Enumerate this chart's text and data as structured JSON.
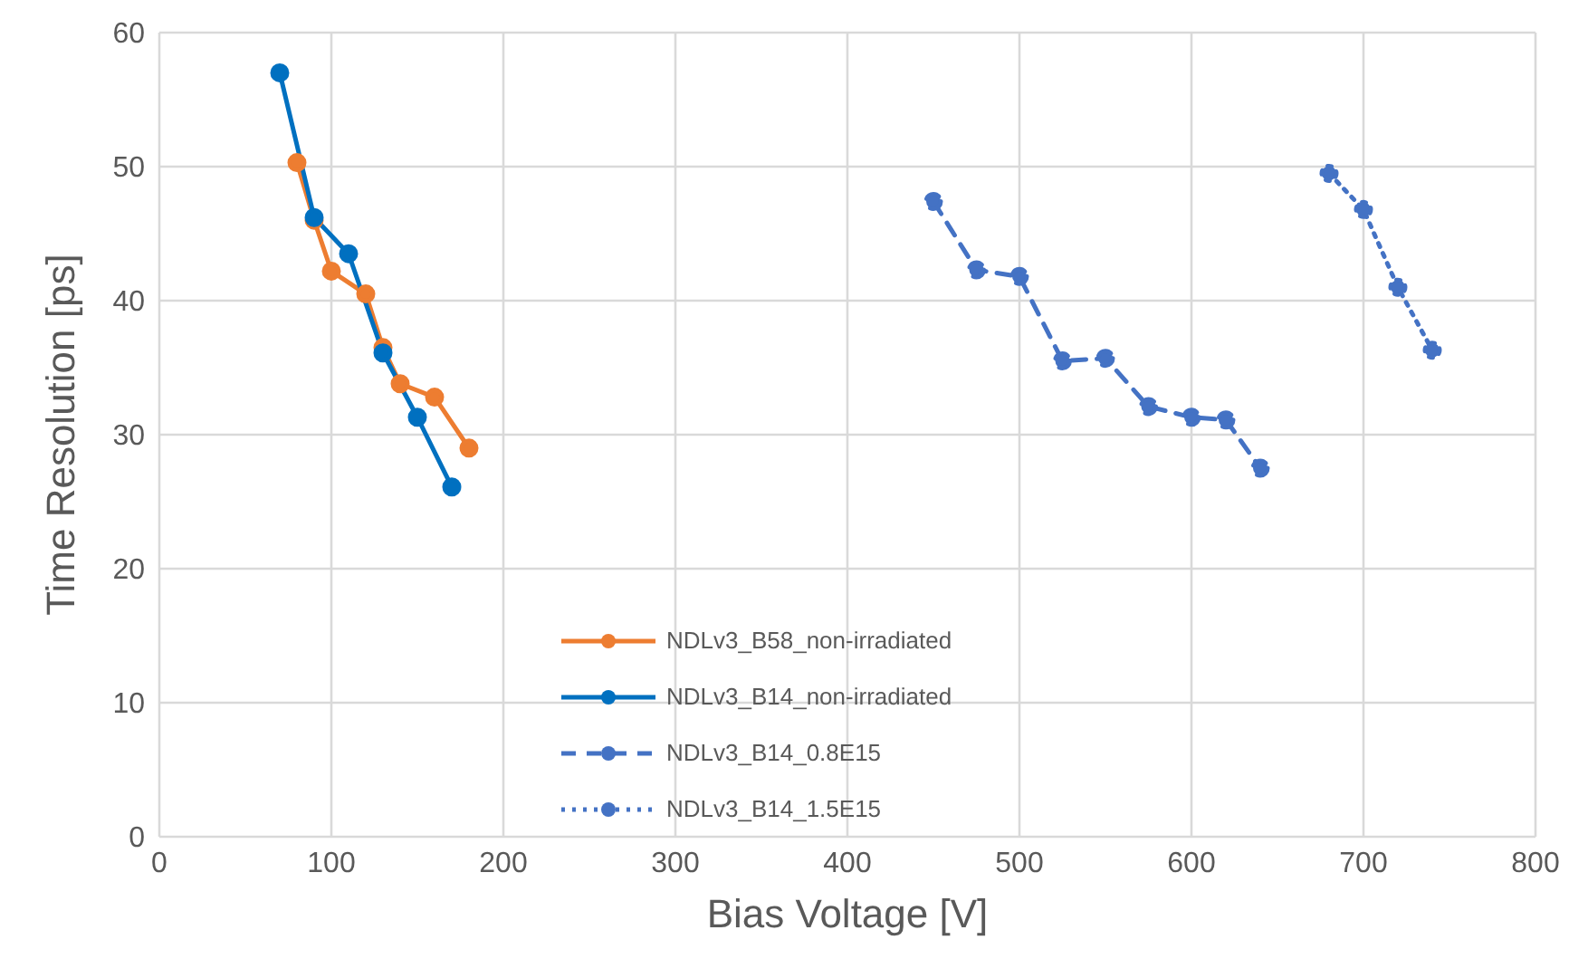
{
  "chart_data": {
    "type": "line",
    "xlabel": "Bias Voltage [V]",
    "ylabel": "Time Resolution [ps]",
    "xlim": [
      0,
      800
    ],
    "xticks": [
      0,
      100,
      200,
      300,
      400,
      500,
      600,
      700,
      800
    ],
    "ylim": [
      0,
      60
    ],
    "yticks": [
      0,
      10,
      20,
      30,
      40,
      50,
      60
    ],
    "grid": true,
    "legend": "bottom",
    "marker": "circle",
    "series": [
      {
        "name": "NDLv3_B58_non-irradiated",
        "color": "#ed7d31",
        "line_style": "solid",
        "x": [
          80,
          90,
          100,
          120,
          130,
          140,
          160,
          180
        ],
        "values": [
          50.3,
          46,
          42.2,
          40.5,
          36.5,
          33.8,
          32.8,
          29
        ]
      },
      {
        "name": "NDLv3_B14_non-irradiated",
        "color": "#0070c0",
        "line_style": "solid",
        "x": [
          70,
          90,
          110,
          130,
          150,
          170
        ],
        "values": [
          57,
          46.2,
          43.5,
          36.1,
          31.3,
          26.1
        ]
      },
      {
        "name": "NDLv3_B14_0.8E15",
        "color": "#4472c4",
        "line_style": "dashed",
        "x": [
          450,
          475,
          500,
          525,
          550,
          575,
          600,
          620,
          640
        ],
        "values": [
          47.4,
          42.3,
          41.8,
          35.5,
          35.7,
          32.1,
          31.3,
          31.1,
          27.5
        ]
      },
      {
        "name": "NDLv3_B14_1.5E15",
        "color": "#4472c4",
        "line_style": "dotted",
        "x": [
          680,
          700,
          720,
          740
        ],
        "values": [
          49.5,
          46.8,
          41,
          36.3
        ]
      }
    ]
  }
}
